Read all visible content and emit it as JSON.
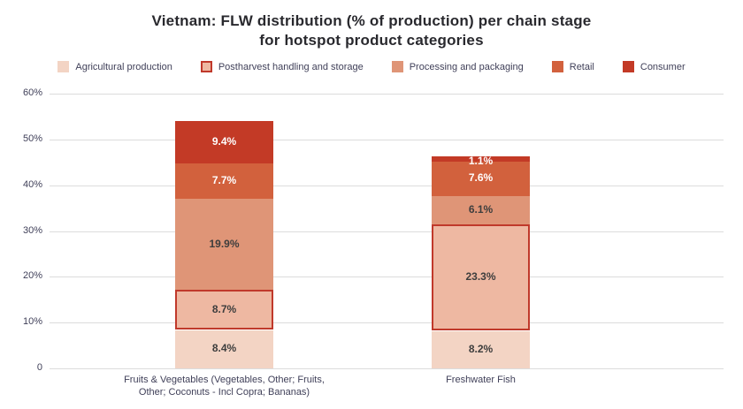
{
  "title": {
    "line1": "Vietnam: FLW distribution (% of production) per chain stage",
    "line2": "for hotspot product categories"
  },
  "colors": {
    "title_text": "#29292e",
    "axis_text": "#3f3f58",
    "gridline": "#dcdcdc",
    "postharvest_border": "#c0392b",
    "dark_data_label": "#3d3d3d",
    "light_data_label": "#ffffff",
    "background": "#ffffff"
  },
  "chart_data": {
    "type": "bar",
    "stacked": true,
    "title": "Vietnam: FLW distribution (% of production) per chain stage for hotspot product categories",
    "xlabel": "",
    "ylabel": "",
    "ylim": [
      0,
      60
    ],
    "grid": true,
    "legend_position": "top",
    "yticks": [
      {
        "value": 0,
        "label": "0"
      },
      {
        "value": 10,
        "label": "10%"
      },
      {
        "value": 20,
        "label": "20%"
      },
      {
        "value": 30,
        "label": "30%"
      },
      {
        "value": 40,
        "label": "40%"
      },
      {
        "value": 50,
        "label": "50%"
      },
      {
        "value": 60,
        "label": "60%"
      }
    ],
    "categories": [
      "Fruits & Vegetables (Vegetables, Other; Fruits,\nOther; Coconuts - Incl Copra; Bananas)",
      "Freshwater Fish"
    ],
    "series": [
      {
        "name": "Agricultural production",
        "color": "#f3d4c4",
        "values": [
          8.4,
          8.2
        ],
        "label_color": "#3d3d3d"
      },
      {
        "name": "Postharvest handling and storage",
        "color": "#eeb8a2",
        "border_color": "#c0392b",
        "values": [
          8.7,
          23.3
        ],
        "label_color": "#3d3d3d"
      },
      {
        "name": "Processing and packaging",
        "color": "#df9577",
        "values": [
          19.9,
          6.1
        ],
        "label_color": "#3d3d3d"
      },
      {
        "name": "Retail",
        "color": "#d2613d",
        "values": [
          7.7,
          7.6
        ],
        "label_color": "#ffffff"
      },
      {
        "name": "Consumer",
        "color": "#c33a26",
        "values": [
          9.4,
          1.1
        ],
        "label_color": "#ffffff"
      }
    ],
    "data_label_format": "0.0%",
    "bar_totals": [
      54.1,
      46.3
    ]
  }
}
